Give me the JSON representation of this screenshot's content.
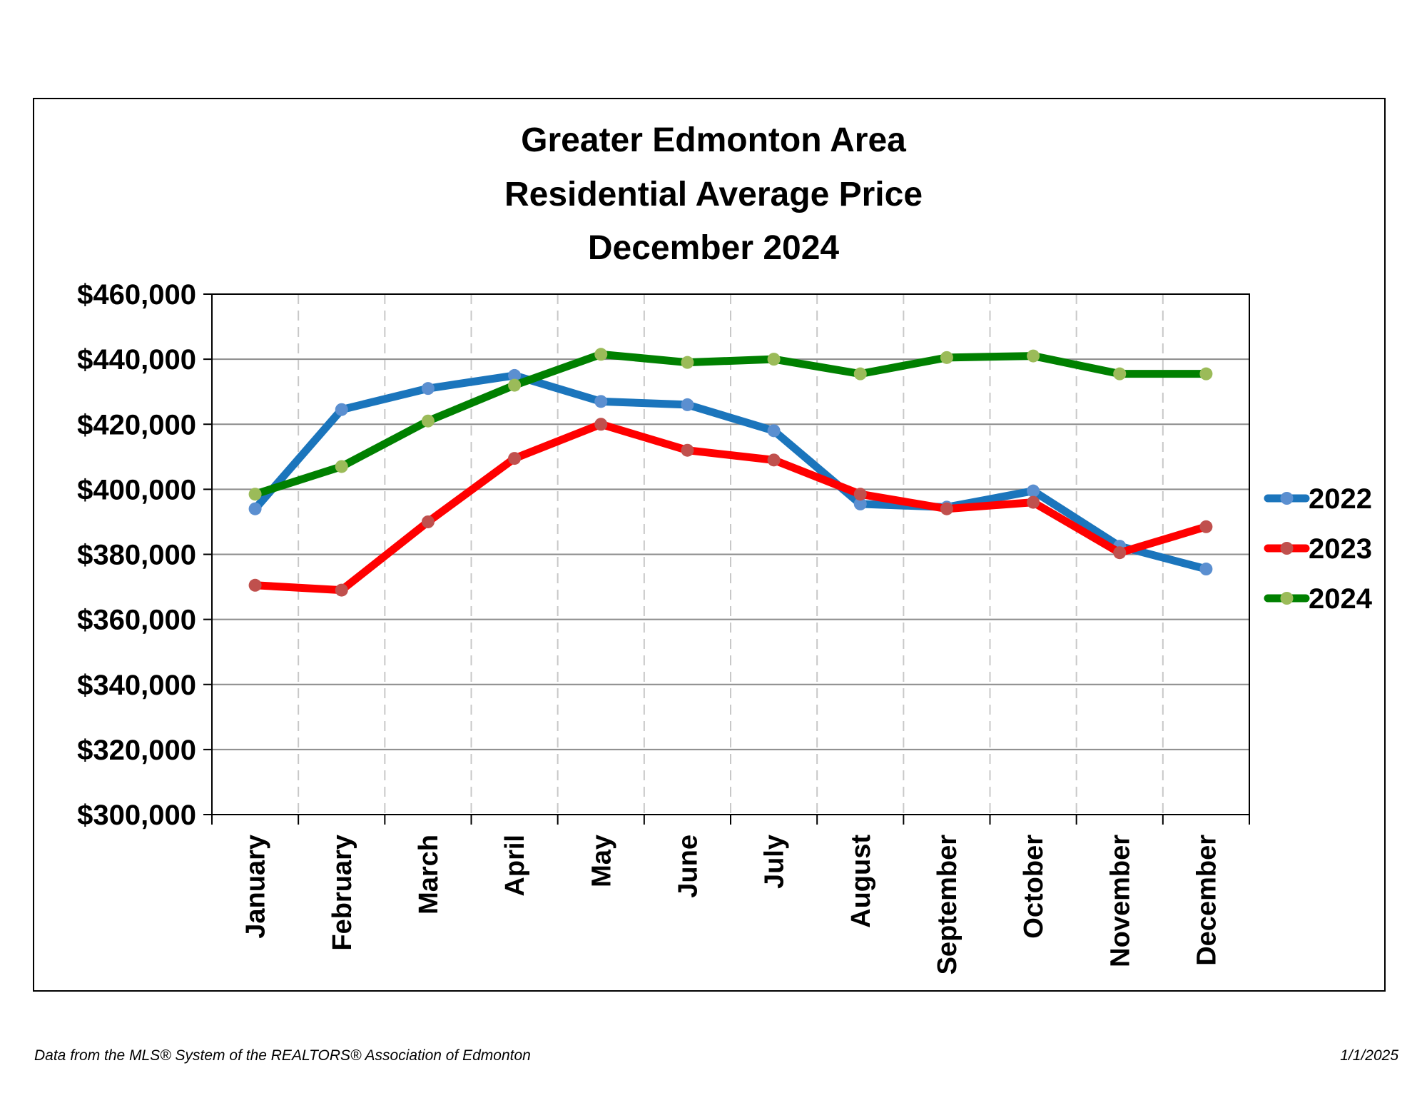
{
  "footer": {
    "source": "Data from the MLS® System of the REALTORS® Association of Edmonton",
    "date": "1/1/2025"
  },
  "chart_data": {
    "type": "line",
    "title": [
      "Greater Edmonton Area",
      "Residential Average Price",
      "December 2024"
    ],
    "xlabel": "",
    "ylabel": "",
    "categories": [
      "January",
      "February",
      "March",
      "April",
      "May",
      "June",
      "July",
      "August",
      "September",
      "October",
      "November",
      "December"
    ],
    "ylim": [
      300000,
      460000
    ],
    "yticks": [
      300000,
      320000,
      340000,
      360000,
      380000,
      400000,
      420000,
      440000,
      460000
    ],
    "ytick_labels": [
      "$300,000",
      "$320,000",
      "$340,000",
      "$360,000",
      "$380,000",
      "$400,000",
      "$420,000",
      "$440,000",
      "$460,000"
    ],
    "horizontal_grid": true,
    "vertical_grid": "dashed",
    "legend_position": "right",
    "series": [
      {
        "name": "2022",
        "line_color": "#1b75bc",
        "marker_color": "#5b8fd0",
        "values": [
          394000,
          424500,
          431000,
          435000,
          427000,
          426000,
          418000,
          395500,
          394500,
          399500,
          382500,
          375500
        ]
      },
      {
        "name": "2023",
        "line_color": "#ff0000",
        "marker_color": "#c0504d",
        "values": [
          370500,
          369000,
          390000,
          409500,
          420000,
          412000,
          409000,
          398500,
          394000,
          396000,
          380500,
          388500
        ]
      },
      {
        "name": "2024",
        "line_color": "#008000",
        "marker_color": "#9bbb59",
        "values": [
          398500,
          407000,
          421000,
          432000,
          441500,
          439000,
          440000,
          435500,
          440500,
          441000,
          435500,
          435500
        ]
      }
    ]
  }
}
